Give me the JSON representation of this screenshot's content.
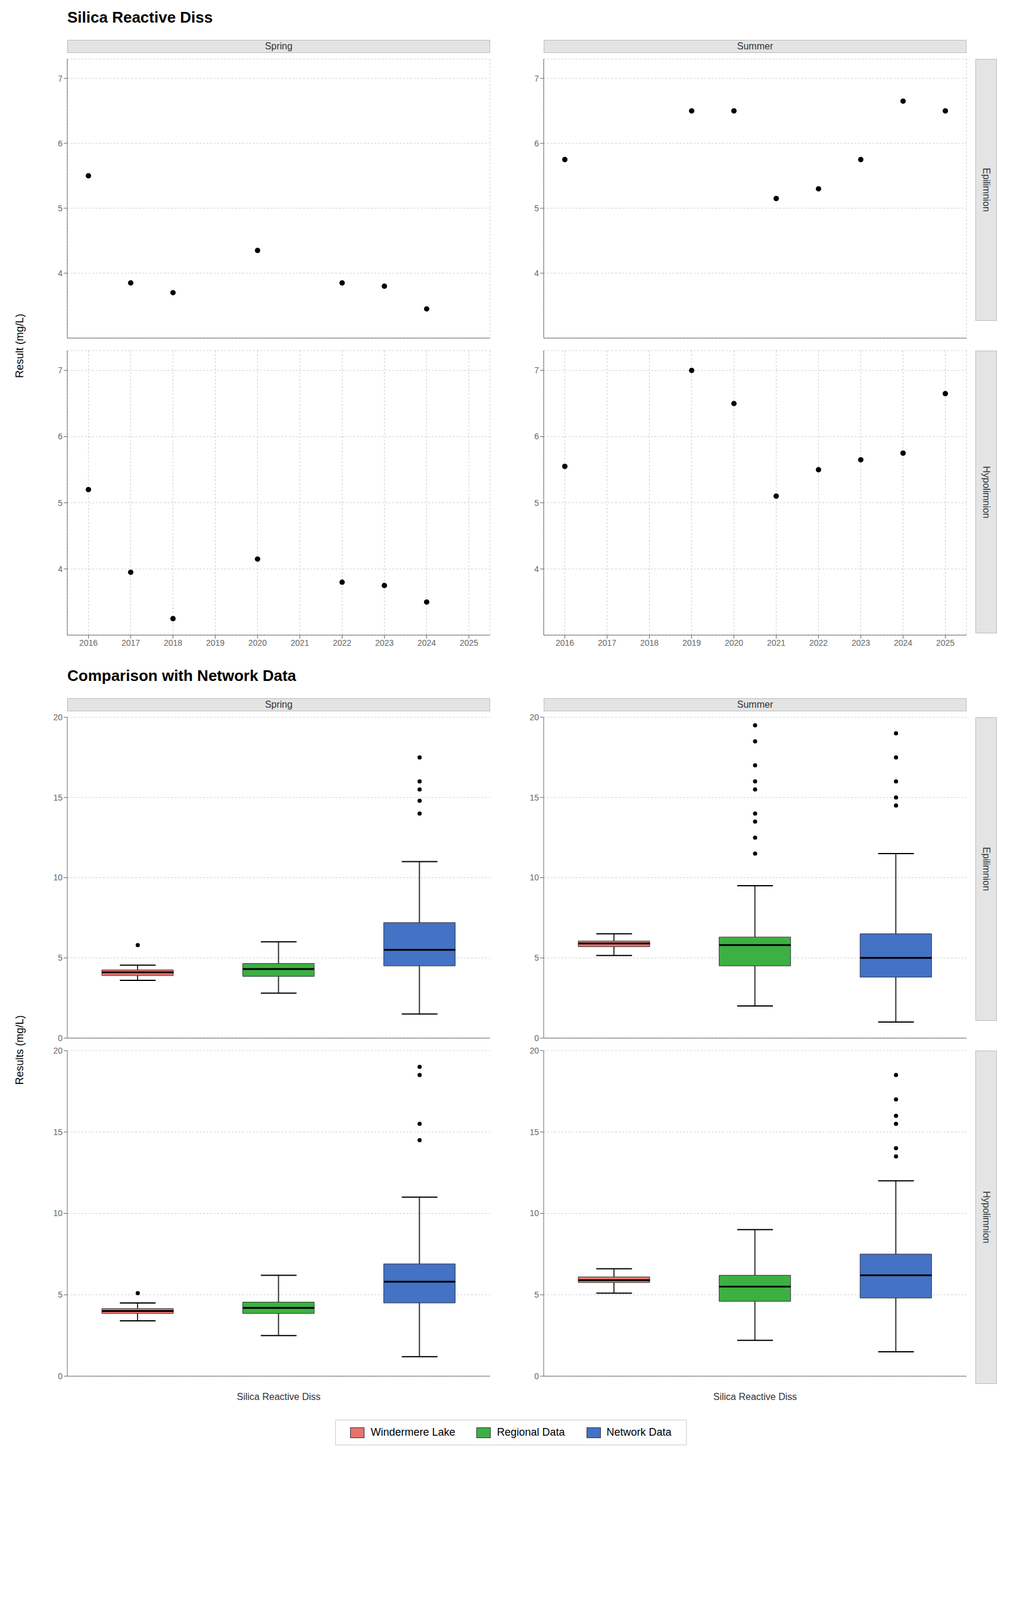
{
  "chart_data": [
    {
      "type": "scatter",
      "title": "Silica Reactive Diss",
      "ylabel": "Result (mg/L)",
      "columns": [
        "Spring",
        "Summer"
      ],
      "rows": [
        "Epilimnion",
        "Hypolimnion"
      ],
      "color": "#000000",
      "xlim": [
        2015.5,
        2025.5
      ],
      "ylim": [
        3.0,
        7.3
      ],
      "xticks": [
        2016,
        2017,
        2018,
        2019,
        2020,
        2021,
        2022,
        2023,
        2024,
        2025
      ],
      "yticks": [
        4,
        5,
        6,
        7
      ],
      "grid": true,
      "panels": [
        [
          {
            "x": [
              2016,
              2017,
              2018,
              2020,
              2022,
              2023,
              2024
            ],
            "y": [
              5.5,
              3.85,
              3.7,
              4.35,
              3.85,
              3.8,
              3.45
            ]
          },
          {
            "x": [
              2016,
              2019,
              2020,
              2021,
              2022,
              2023,
              2024,
              2025
            ],
            "y": [
              5.75,
              6.5,
              6.5,
              5.15,
              5.3,
              5.75,
              6.65,
              6.5
            ]
          }
        ],
        [
          {
            "x": [
              2016,
              2017,
              2018,
              2020,
              2022,
              2023,
              2024
            ],
            "y": [
              5.2,
              3.95,
              3.25,
              4.15,
              3.8,
              3.75,
              3.5
            ]
          },
          {
            "x": [
              2016,
              2019,
              2020,
              2021,
              2022,
              2023,
              2024,
              2025
            ],
            "y": [
              5.55,
              7.0,
              6.5,
              5.1,
              5.5,
              5.65,
              5.75,
              6.65
            ]
          }
        ]
      ]
    },
    {
      "type": "box",
      "title": "Comparison with Network Data",
      "ylabel": "Results (mg/L)",
      "xlabel": "Silica Reactive Diss",
      "columns": [
        "Spring",
        "Summer"
      ],
      "rows": [
        "Epilimnion",
        "Hypolimnion"
      ],
      "series": [
        {
          "name": "Windermere Lake",
          "color": "#E8736C"
        },
        {
          "name": "Regional Data",
          "color": "#3CB043"
        },
        {
          "name": "Network Data",
          "color": "#4472C4"
        }
      ],
      "ylim": [
        0,
        20
      ],
      "yticks": [
        0,
        5,
        10,
        15,
        20
      ],
      "grid": true,
      "legend": "bottom",
      "tick_labels": "y",
      "panels": [
        [
          [
            {
              "median": 4.1,
              "q1": 3.9,
              "q3": 4.25,
              "whislo": 3.6,
              "whishi": 4.55,
              "fliers": [
                5.8
              ]
            },
            {
              "median": 4.3,
              "q1": 3.85,
              "q3": 4.65,
              "whislo": 2.8,
              "whishi": 6.0,
              "fliers": []
            },
            {
              "median": 5.5,
              "q1": 4.5,
              "q3": 7.2,
              "whislo": 1.5,
              "whishi": 11.0,
              "fliers": [
                14.0,
                14.8,
                15.5,
                16.0,
                17.5
              ]
            }
          ],
          [
            {
              "median": 5.9,
              "q1": 5.7,
              "q3": 6.05,
              "whislo": 5.15,
              "whishi": 6.5,
              "fliers": []
            },
            {
              "median": 5.8,
              "q1": 4.5,
              "q3": 6.3,
              "whislo": 2.0,
              "whishi": 9.5,
              "fliers": [
                11.5,
                12.5,
                13.5,
                14.0,
                15.5,
                16.0,
                17.0,
                18.5,
                19.5
              ]
            },
            {
              "median": 5.0,
              "q1": 3.8,
              "q3": 6.5,
              "whislo": 1.0,
              "whishi": 11.5,
              "fliers": [
                14.5,
                15.0,
                16.0,
                17.5,
                19.0
              ]
            }
          ]
        ],
        [
          [
            {
              "median": 4.0,
              "q1": 3.85,
              "q3": 4.15,
              "whislo": 3.4,
              "whishi": 4.5,
              "fliers": [
                5.1
              ]
            },
            {
              "median": 4.2,
              "q1": 3.85,
              "q3": 4.55,
              "whislo": 2.5,
              "whishi": 6.2,
              "fliers": []
            },
            {
              "median": 5.8,
              "q1": 4.5,
              "q3": 6.9,
              "whislo": 1.2,
              "whishi": 11.0,
              "fliers": [
                14.5,
                15.5,
                18.5,
                19.0
              ]
            }
          ],
          [
            {
              "median": 5.9,
              "q1": 5.75,
              "q3": 6.1,
              "whislo": 5.1,
              "whishi": 6.6,
              "fliers": []
            },
            {
              "median": 5.5,
              "q1": 4.6,
              "q3": 6.2,
              "whislo": 2.2,
              "whishi": 9.0,
              "fliers": []
            },
            {
              "median": 6.2,
              "q1": 4.8,
              "q3": 7.5,
              "whislo": 1.5,
              "whishi": 12.0,
              "fliers": [
                13.5,
                14.0,
                15.5,
                16.0,
                17.0,
                18.5
              ]
            }
          ]
        ]
      ]
    }
  ]
}
